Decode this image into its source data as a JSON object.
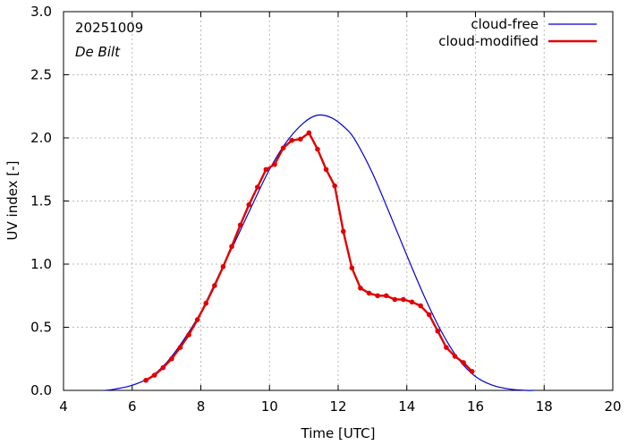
{
  "chart_data": {
    "type": "line",
    "xlabel": "Time  [UTC]",
    "ylabel": "UV index  [-]",
    "xlim": [
      4,
      20
    ],
    "ylim": [
      0,
      3
    ],
    "x_ticks": [
      "4",
      "6",
      "8",
      "10",
      "12",
      "14",
      "16",
      "18",
      "20"
    ],
    "y_ticks": [
      "0.0",
      "0.5",
      "1.0",
      "1.5",
      "2.0",
      "2.5",
      "3.0"
    ],
    "annotations": {
      "date": "20251009",
      "station": "De Bilt"
    },
    "colors": {
      "cloud_free": "#0000cc",
      "cloud_modified": "#e00000"
    },
    "series": [
      {
        "name": "cloud-free",
        "style": "line",
        "x": [
          5.2,
          5.5,
          6.0,
          6.5,
          7.0,
          7.5,
          8.0,
          8.5,
          9.0,
          9.5,
          10.0,
          10.5,
          11.0,
          11.4,
          11.8,
          12.2,
          12.5,
          13.0,
          13.5,
          14.0,
          14.5,
          15.0,
          15.5,
          16.0,
          16.5,
          17.0,
          17.5,
          17.7
        ],
        "y": [
          0.0,
          0.01,
          0.04,
          0.1,
          0.22,
          0.4,
          0.62,
          0.9,
          1.18,
          1.47,
          1.75,
          1.97,
          2.12,
          2.18,
          2.16,
          2.08,
          1.98,
          1.72,
          1.4,
          1.07,
          0.75,
          0.47,
          0.25,
          0.11,
          0.04,
          0.01,
          0.0,
          0.0
        ]
      },
      {
        "name": "cloud-modified",
        "style": "line-markers",
        "x": [
          6.4,
          6.65,
          6.9,
          7.15,
          7.4,
          7.65,
          7.9,
          8.15,
          8.4,
          8.65,
          8.9,
          9.15,
          9.4,
          9.65,
          9.9,
          10.15,
          10.4,
          10.65,
          10.9,
          11.15,
          11.4,
          11.65,
          11.9,
          12.15,
          12.4,
          12.65,
          12.9,
          13.15,
          13.4,
          13.65,
          13.9,
          14.15,
          14.4,
          14.65,
          14.9,
          15.15,
          15.4,
          15.65,
          15.9
        ],
        "y": [
          0.08,
          0.12,
          0.18,
          0.25,
          0.34,
          0.44,
          0.56,
          0.69,
          0.83,
          0.98,
          1.14,
          1.31,
          1.47,
          1.61,
          1.75,
          1.79,
          1.92,
          1.98,
          1.99,
          2.04,
          1.91,
          1.75,
          1.62,
          1.26,
          0.97,
          0.81,
          0.77,
          0.75,
          0.75,
          0.72,
          0.72,
          0.7,
          0.67,
          0.6,
          0.47,
          0.34,
          0.27,
          0.22,
          0.15
        ]
      }
    ]
  }
}
